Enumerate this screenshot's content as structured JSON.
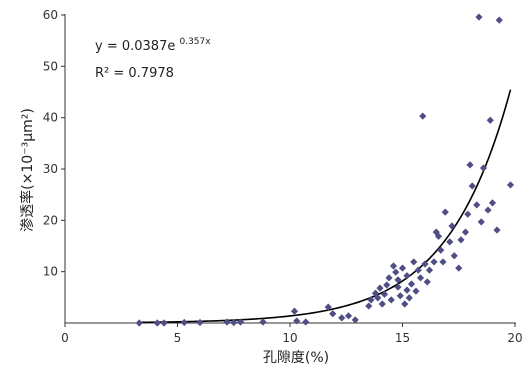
{
  "chart_data": {
    "type": "scatter",
    "xlabel": "孔隙度(%)",
    "ylabel": "渗透率(×10⁻³μm²)",
    "xlim": [
      0,
      20
    ],
    "ylim": [
      0,
      60
    ],
    "x_ticks": [
      "0",
      "5",
      "10",
      "15",
      "20"
    ],
    "y_ticks": [
      "10",
      "20",
      "30",
      "40",
      "50",
      "60"
    ],
    "grid": false,
    "marker_color": "#4f4f85",
    "trendline": {
      "type": "exponential",
      "equation": "y = 0.0387e",
      "exponent": "0.357x",
      "r_squared": "R² = 0.7978",
      "color": "#000000"
    },
    "points": [
      [
        3.3,
        0.0
      ],
      [
        4.1,
        0.0
      ],
      [
        4.4,
        0.0
      ],
      [
        5.3,
        0.1
      ],
      [
        6.0,
        0.1
      ],
      [
        7.2,
        0.2
      ],
      [
        7.5,
        0.1
      ],
      [
        7.8,
        0.2
      ],
      [
        8.8,
        0.2
      ],
      [
        10.2,
        2.3
      ],
      [
        10.3,
        0.4
      ],
      [
        10.7,
        0.2
      ],
      [
        11.7,
        3.1
      ],
      [
        11.9,
        1.8
      ],
      [
        12.3,
        1.0
      ],
      [
        12.6,
        1.4
      ],
      [
        12.9,
        0.6
      ],
      [
        13.5,
        3.3
      ],
      [
        13.6,
        4.5
      ],
      [
        13.8,
        5.8
      ],
      [
        13.9,
        4.9
      ],
      [
        14.0,
        6.8
      ],
      [
        14.1,
        3.7
      ],
      [
        14.2,
        5.6
      ],
      [
        14.3,
        7.4
      ],
      [
        14.4,
        8.8
      ],
      [
        14.5,
        4.5
      ],
      [
        14.6,
        11.1
      ],
      [
        14.7,
        9.9
      ],
      [
        14.8,
        8.4
      ],
      [
        14.8,
        7.0
      ],
      [
        14.9,
        5.3
      ],
      [
        15.0,
        10.7
      ],
      [
        15.1,
        3.7
      ],
      [
        15.2,
        6.4
      ],
      [
        15.2,
        9.2
      ],
      [
        15.3,
        4.9
      ],
      [
        15.4,
        7.6
      ],
      [
        15.5,
        11.9
      ],
      [
        15.6,
        6.2
      ],
      [
        15.7,
        10.3
      ],
      [
        15.8,
        8.8
      ],
      [
        15.9,
        40.3
      ],
      [
        16.0,
        11.5
      ],
      [
        16.1,
        8.0
      ],
      [
        16.2,
        10.3
      ],
      [
        16.4,
        11.9
      ],
      [
        16.5,
        17.7
      ],
      [
        16.6,
        16.9
      ],
      [
        16.7,
        14.2
      ],
      [
        16.8,
        11.9
      ],
      [
        16.9,
        21.6
      ],
      [
        17.1,
        15.8
      ],
      [
        17.2,
        18.9
      ],
      [
        17.3,
        13.1
      ],
      [
        17.5,
        10.7
      ],
      [
        17.6,
        16.2
      ],
      [
        17.8,
        17.7
      ],
      [
        17.9,
        21.2
      ],
      [
        18.0,
        30.8
      ],
      [
        18.1,
        26.7
      ],
      [
        18.3,
        23.0
      ],
      [
        18.4,
        59.6
      ],
      [
        18.5,
        19.7
      ],
      [
        18.6,
        30.2
      ],
      [
        18.8,
        22.0
      ],
      [
        18.9,
        39.5
      ],
      [
        19.0,
        23.4
      ],
      [
        19.2,
        18.1
      ],
      [
        19.3,
        59.0
      ],
      [
        19.8,
        26.9
      ]
    ]
  }
}
